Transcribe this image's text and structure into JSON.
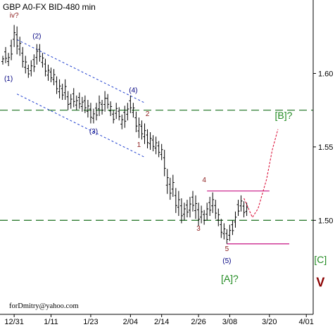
{
  "chart_data": {
    "type": "ohlc",
    "title": "GBP A0-FX BID-480 min",
    "watermark": "forDmitry@yahoo.com",
    "x_ticks": [
      "12/31",
      "1/11",
      "1/23",
      "2/04",
      "2/14",
      "2/26",
      "3/08",
      "3/20",
      "4/01"
    ],
    "y_ticks": [
      "1.50",
      "1.55",
      "1.60"
    ],
    "ylim": [
      1.436,
      1.65
    ],
    "grid": false,
    "series": [
      {
        "values": [
          [
            1.612,
            1.606
          ],
          [
            1.618,
            1.607
          ],
          [
            1.614,
            1.605
          ],
          [
            1.623,
            1.609
          ],
          [
            1.633,
            1.618
          ],
          [
            1.632,
            1.613
          ],
          [
            1.625,
            1.612
          ],
          [
            1.618,
            1.604
          ],
          [
            1.612,
            1.6
          ],
          [
            1.606,
            1.597
          ],
          [
            1.609,
            1.598
          ],
          [
            1.613,
            1.601
          ],
          [
            1.62,
            1.606
          ],
          [
            1.62,
            1.608
          ],
          [
            1.614,
            1.604
          ],
          [
            1.61,
            1.598
          ],
          [
            1.606,
            1.595
          ],
          [
            1.604,
            1.594
          ],
          [
            1.603,
            1.592
          ],
          [
            1.598,
            1.586
          ],
          [
            1.596,
            1.583
          ],
          [
            1.593,
            1.582
          ],
          [
            1.596,
            1.582
          ],
          [
            1.588,
            1.575
          ],
          [
            1.586,
            1.576
          ],
          [
            1.59,
            1.577
          ],
          [
            1.585,
            1.575
          ],
          [
            1.587,
            1.576
          ],
          [
            1.584,
            1.574
          ],
          [
            1.585,
            1.573
          ],
          [
            1.582,
            1.57
          ],
          [
            1.58,
            1.566
          ],
          [
            1.576,
            1.566
          ],
          [
            1.58,
            1.568
          ],
          [
            1.585,
            1.571
          ],
          [
            1.582,
            1.572
          ],
          [
            1.588,
            1.574
          ],
          [
            1.586,
            1.576
          ],
          [
            1.581,
            1.571
          ],
          [
            1.575,
            1.566
          ],
          [
            1.58,
            1.569
          ],
          [
            1.577,
            1.568
          ],
          [
            1.572,
            1.562
          ],
          [
            1.578,
            1.563
          ],
          [
            1.58,
            1.568
          ],
          [
            1.585,
            1.573
          ],
          [
            1.58,
            1.57
          ],
          [
            1.574,
            1.56
          ],
          [
            1.57,
            1.556
          ],
          [
            1.568,
            1.555
          ],
          [
            1.566,
            1.552
          ],
          [
            1.562,
            1.549
          ],
          [
            1.56,
            1.548
          ],
          [
            1.558,
            1.547
          ],
          [
            1.557,
            1.545
          ],
          [
            1.554,
            1.543
          ],
          [
            1.552,
            1.541
          ],
          [
            1.548,
            1.53
          ],
          [
            1.535,
            1.518
          ],
          [
            1.529,
            1.514
          ],
          [
            1.531,
            1.516
          ],
          [
            1.522,
            1.505
          ],
          [
            1.52,
            1.503
          ],
          [
            1.515,
            1.498
          ],
          [
            1.512,
            1.5
          ],
          [
            1.514,
            1.502
          ],
          [
            1.516,
            1.502
          ],
          [
            1.52,
            1.506
          ],
          [
            1.517,
            1.501
          ],
          [
            1.512,
            1.496
          ],
          [
            1.51,
            1.498
          ],
          [
            1.507,
            1.497
          ],
          [
            1.512,
            1.5
          ],
          [
            1.516,
            1.503
          ],
          [
            1.519,
            1.505
          ],
          [
            1.514,
            1.501
          ],
          [
            1.508,
            1.496
          ],
          [
            1.501,
            1.488
          ],
          [
            1.498,
            1.487
          ],
          [
            1.494,
            1.484
          ],
          [
            1.497,
            1.486
          ],
          [
            1.5,
            1.49
          ],
          [
            1.506,
            1.495
          ],
          [
            1.514,
            1.503
          ],
          [
            1.517,
            1.506
          ],
          [
            1.513,
            1.502
          ],
          [
            1.512,
            1.503
          ]
        ]
      }
    ],
    "dashed_levels": [
      1.575,
      1.5
    ],
    "channel_lines": [
      [
        [
          5,
          1.623
        ],
        [
          50,
          1.58
        ]
      ],
      [
        [
          5,
          1.586
        ],
        [
          50,
          1.543
        ]
      ]
    ],
    "wave_labels": [
      {
        "text": "iv?",
        "x": 4,
        "y": 1.638,
        "color": "#8b1a1a"
      },
      {
        "text": "(1)",
        "x": 2,
        "y": 1.595,
        "color": "#000080"
      },
      {
        "text": "(2)",
        "x": 12,
        "y": 1.624,
        "color": "#000080"
      },
      {
        "text": "(3)",
        "x": 32,
        "y": 1.559,
        "color": "#000080"
      },
      {
        "text": "(4)",
        "x": 46,
        "y": 1.587,
        "color": "#000080"
      },
      {
        "text": "1",
        "x": 48,
        "y": 1.55,
        "color": "#8b1a1a"
      },
      {
        "text": "2",
        "x": 51,
        "y": 1.571,
        "color": "#8b1a1a"
      },
      {
        "text": "3",
        "x": 69,
        "y": 1.493,
        "color": "#8b1a1a"
      },
      {
        "text": "4",
        "x": 71,
        "y": 1.526,
        "color": "#8b1a1a"
      },
      {
        "text": "5",
        "x": 79,
        "y": 1.479,
        "color": "#8b1a1a"
      },
      {
        "text": "(5)",
        "x": 79,
        "y": 1.471,
        "color": "#000080"
      },
      {
        "text": "[A]?",
        "x": 80,
        "y": 1.458,
        "color": "#228b22"
      },
      {
        "text": "[B]?",
        "x": 99,
        "y": 1.569,
        "color": "#228b22"
      },
      {
        "text": "[C]",
        "x": 112,
        "y": 1.471,
        "color": "#228b22"
      },
      {
        "text": "V",
        "x": 112,
        "y": 1.455,
        "color": "#8b0000"
      }
    ],
    "magenta_levels": [
      {
        "value": 1.52,
        "x_start": 72,
        "x_end": 94
      },
      {
        "value": 1.484,
        "x_start": 79,
        "x_end": 101
      }
    ],
    "forecast_path": [
      [
        85,
        1.515
      ],
      [
        88,
        1.502
      ],
      [
        90,
        1.508
      ],
      [
        93,
        1.528
      ],
      [
        95,
        1.548
      ],
      [
        97,
        1.562
      ]
    ]
  }
}
